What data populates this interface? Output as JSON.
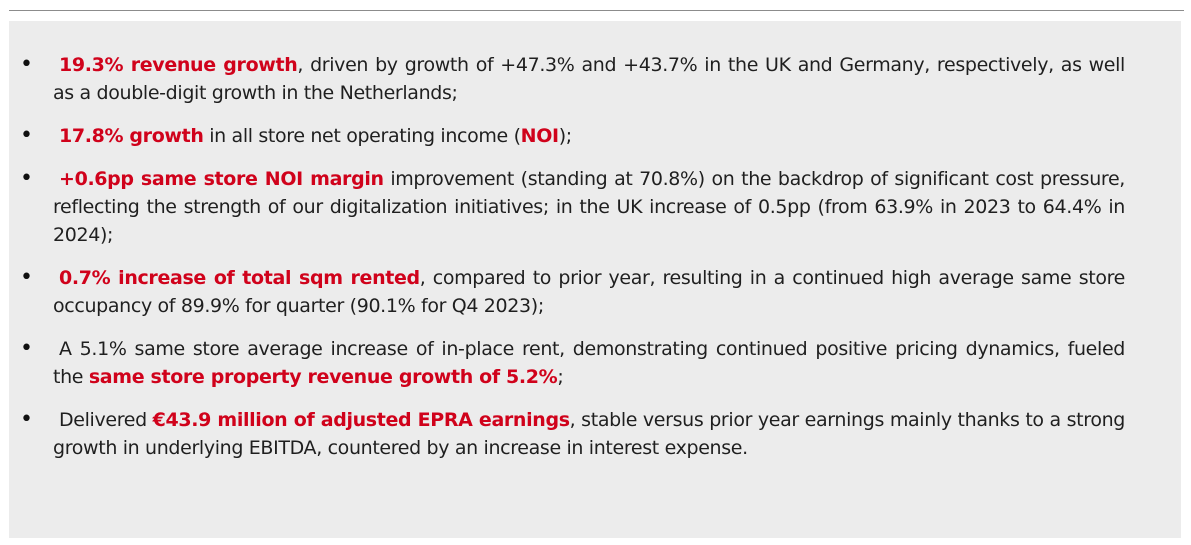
{
  "highlights": [
    {
      "pre": "",
      "highlight": "19.3% revenue growth",
      "post": ", driven by growth of +47.3% and +43.7% in the UK and Germany, respectively, as well as a double-digit growth in the Netherlands;"
    },
    {
      "pre": "",
      "highlight": "17.8% growth",
      "post": " in all store net operating income (",
      "highlight2": "NOI",
      "post2": ");"
    },
    {
      "pre": "",
      "highlight": "+0.6pp same store NOI margin",
      "post": " improvement (standing at 70.8%) on the backdrop of significant cost pressure, reflecting the strength of our digitalization initiatives; in the UK increase of 0.5pp (from 63.9% in 2023 to 64.4% in 2024);"
    },
    {
      "pre": "",
      "highlight": "0.7% increase of total sqm rented",
      "post": ", compared to prior year, resulting in a continued high average same store occupancy of 89.9% for quarter (90.1% for Q4 2023);"
    },
    {
      "pre": "A 5.1% same store average increase of in-place rent, demonstrating continued positive pricing dynamics, fueled the ",
      "highlight": "same store property revenue growth of 5.2%",
      "post": ";"
    },
    {
      "pre": "Delivered ",
      "highlight": "€43.9 million of adjusted EPRA earnings",
      "post": ", stable versus prior year earnings mainly thanks to a strong growth in underlying EBITDA, countered by an increase in interest expense."
    }
  ],
  "colors": {
    "accent": "#d0021b",
    "panel_background": "#ececec",
    "text": "#1f1f1f"
  },
  "bullet_glyph": "•"
}
